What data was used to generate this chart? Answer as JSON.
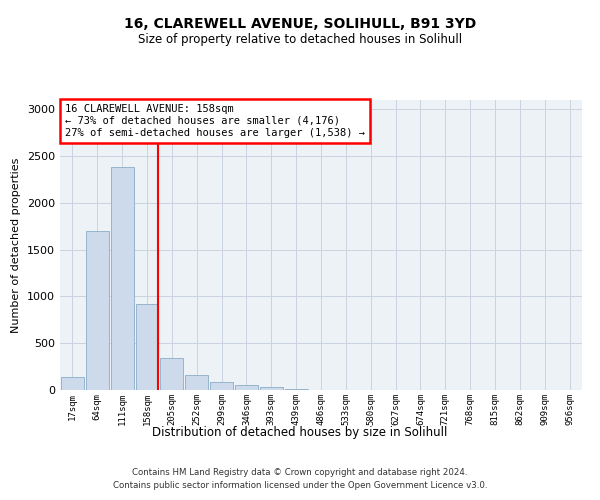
{
  "title_line1": "16, CLAREWELL AVENUE, SOLIHULL, B91 3YD",
  "title_line2": "Size of property relative to detached houses in Solihull",
  "xlabel": "Distribution of detached houses by size in Solihull",
  "ylabel": "Number of detached properties",
  "footer_line1": "Contains HM Land Registry data © Crown copyright and database right 2024.",
  "footer_line2": "Contains public sector information licensed under the Open Government Licence v3.0.",
  "bin_labels": [
    "17sqm",
    "64sqm",
    "111sqm",
    "158sqm",
    "205sqm",
    "252sqm",
    "299sqm",
    "346sqm",
    "393sqm",
    "439sqm",
    "486sqm",
    "533sqm",
    "580sqm",
    "627sqm",
    "674sqm",
    "721sqm",
    "768sqm",
    "815sqm",
    "862sqm",
    "909sqm",
    "956sqm"
  ],
  "bar_values": [
    140,
    1700,
    2380,
    920,
    345,
    160,
    90,
    55,
    30,
    10,
    5,
    2,
    1,
    0,
    0,
    0,
    0,
    0,
    0,
    0,
    0
  ],
  "bar_color": "#ccdaeb",
  "bar_edgecolor": "#8aaec8",
  "vline_x_index": 3,
  "vline_color": "red",
  "annotation_text": "16 CLAREWELL AVENUE: 158sqm\n← 73% of detached houses are smaller (4,176)\n27% of semi-detached houses are larger (1,538) →",
  "annotation_box_color": "white",
  "annotation_box_edgecolor": "red",
  "ylim": [
    0,
    3100
  ],
  "yticks": [
    0,
    500,
    1000,
    1500,
    2000,
    2500,
    3000
  ],
  "grid_color": "#c8d4e0",
  "bg_color": "#edf2f7"
}
